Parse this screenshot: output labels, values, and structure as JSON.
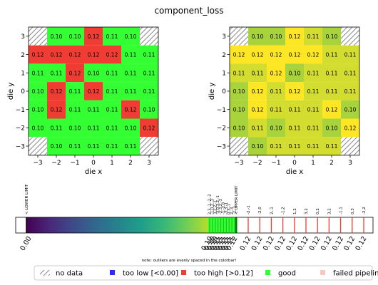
{
  "title": "component_loss",
  "colors": {
    "good": "#33ff33",
    "high": "#f03c32",
    "low": "#2b2bff",
    "failed": "#f9c7c2",
    "hatch": "#888888"
  },
  "chart_data": [
    {
      "type": "heatmap",
      "name": "left-wafer-map",
      "xlabel": "die x",
      "ylabel": "die y",
      "x_ticks": [
        "−3",
        "−2",
        "−1",
        "0",
        "1",
        "2",
        "3"
      ],
      "y_ticks": [
        "3",
        "2",
        "1",
        "0",
        "−1",
        "−2",
        "−3"
      ],
      "x": [
        -3,
        -2,
        -1,
        0,
        1,
        2,
        3
      ],
      "y": [
        3,
        2,
        1,
        0,
        -1,
        -2,
        -3
      ],
      "values": [
        [
          null,
          0.1,
          0.1,
          0.12,
          0.11,
          0.1,
          null
        ],
        [
          0.12,
          0.12,
          0.12,
          0.12,
          0.12,
          0.11,
          0.11
        ],
        [
          0.11,
          0.11,
          0.12,
          0.1,
          0.11,
          0.11,
          0.11
        ],
        [
          0.1,
          0.12,
          0.11,
          0.12,
          0.11,
          0.11,
          0.11
        ],
        [
          0.1,
          0.12,
          0.11,
          0.11,
          0.11,
          0.12,
          0.1
        ],
        [
          0.1,
          0.11,
          0.1,
          0.11,
          0.11,
          0.1,
          0.12
        ],
        [
          null,
          0.1,
          0.11,
          0.11,
          0.11,
          0.11,
          null
        ]
      ],
      "status": [
        [
          "nodata",
          "good",
          "good",
          "high",
          "good",
          "good",
          "nodata"
        ],
        [
          "high",
          "high",
          "high",
          "high",
          "high",
          "good",
          "good"
        ],
        [
          "good",
          "good",
          "high",
          "good",
          "good",
          "good",
          "good"
        ],
        [
          "good",
          "high",
          "good",
          "high",
          "good",
          "good",
          "good"
        ],
        [
          "good",
          "high",
          "good",
          "good",
          "good",
          "high",
          "good"
        ],
        [
          "good",
          "good",
          "good",
          "good",
          "good",
          "good",
          "high"
        ],
        [
          "nodata",
          "good",
          "good",
          "good",
          "good",
          "good",
          "nodata"
        ]
      ]
    },
    {
      "type": "heatmap",
      "name": "right-wafer-map",
      "xlabel": "die x",
      "ylabel": "die y",
      "x_ticks": [
        "−3",
        "−2",
        "−1",
        "0",
        "1",
        "2",
        "3"
      ],
      "y_ticks": [
        "3",
        "2",
        "1",
        "0",
        "−1",
        "−2",
        "−3"
      ],
      "x": [
        -3,
        -2,
        -1,
        0,
        1,
        2,
        3
      ],
      "y": [
        3,
        2,
        1,
        0,
        -1,
        -2,
        -3
      ],
      "values": [
        [
          null,
          0.1,
          0.1,
          0.12,
          0.11,
          0.1,
          null
        ],
        [
          0.12,
          0.12,
          0.12,
          0.12,
          0.12,
          0.11,
          0.11
        ],
        [
          0.11,
          0.11,
          0.12,
          0.1,
          0.11,
          0.11,
          0.11
        ],
        [
          0.1,
          0.12,
          0.11,
          0.12,
          0.11,
          0.11,
          0.11
        ],
        [
          0.1,
          0.12,
          0.11,
          0.11,
          0.11,
          0.12,
          0.1
        ],
        [
          0.1,
          0.11,
          0.1,
          0.11,
          0.11,
          0.1,
          0.12
        ],
        [
          null,
          0.1,
          0.11,
          0.11,
          0.11,
          0.11,
          null
        ]
      ],
      "color_range": [
        0.1,
        0.12
      ],
      "color_low": "#a9d33b",
      "color_high": "#fde725"
    },
    {
      "type": "colorbar",
      "name": "colorbar",
      "left_label": "< LOWER LIMIT",
      "right_label": "< UPPER LIMIT",
      "note": "note: outliers are evenly spaced in the colorbar!",
      "cluster_labels": [
        "2,3,-1,-2,-2",
        "-1,0,2,-3",
        "3,2,2,-1",
        "-3,0,3,2,-1",
        "-2,3,2,-3",
        "-1,-2,0",
        "-3,3,-1",
        "0,3,-1",
        "2,-3",
        "-2,-1"
      ],
      "cluster_tick_labels": [
        "0.10",
        "0.10",
        "0.10",
        "0.11",
        "0.11",
        "0.11",
        "0.11",
        "0.11",
        "0.11",
        "0.12"
      ],
      "outlier_labels": [
        "-2,-1",
        "-2,0",
        "2,-1",
        "-1,2",
        "1,2",
        "3,2",
        "0,2",
        "3,2",
        "-1,1",
        "0,3",
        "-2,2"
      ],
      "outlier_tick_labels": [
        "0.12",
        "0.12",
        "0.12",
        "0.12",
        "0.12",
        "0.12",
        "0.12",
        "0.12",
        "0.12",
        "0.12",
        "0.12"
      ],
      "min_tick_label": "0.00"
    }
  ],
  "legend": [
    {
      "key": "nodata",
      "label": "no data"
    },
    {
      "key": "low",
      "label": "too low [<0.00]"
    },
    {
      "key": "high",
      "label": "too high [>0.12]"
    },
    {
      "key": "good",
      "label": "good"
    },
    {
      "key": "failed",
      "label": "failed pipeline"
    }
  ]
}
